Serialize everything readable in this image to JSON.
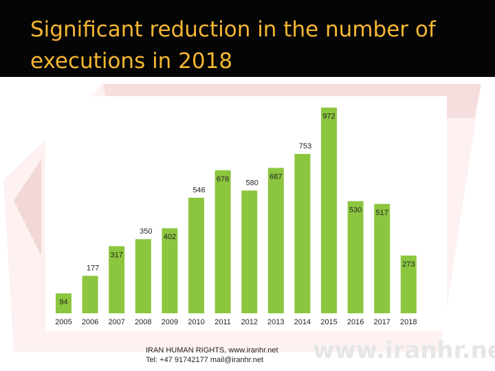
{
  "slide": {
    "title": "Significant reduction in the number of executions in 2018",
    "title_color": "#f5b731",
    "title_band_color": "#050505"
  },
  "footer": {
    "org_line": "IRAN HUMAN RIGHTS, www.iranhr.net",
    "contact_line": "Tel: +47 91742177   mail@iranhr.net",
    "watermark": "www.iranhr.ne"
  },
  "chart_data": {
    "type": "bar",
    "title": "",
    "xlabel": "",
    "ylabel": "",
    "categories": [
      "2005",
      "2006",
      "2007",
      "2008",
      "2009",
      "2010",
      "2011",
      "2012",
      "2013",
      "2014",
      "2015",
      "2016",
      "2017",
      "2018"
    ],
    "values": [
      94,
      177,
      317,
      350,
      402,
      546,
      676,
      580,
      687,
      753,
      972,
      530,
      517,
      273
    ],
    "ylim": [
      0,
      1000
    ],
    "bar_color": "#8cc63f",
    "data_labels": true,
    "grid": false,
    "legend": "none"
  }
}
